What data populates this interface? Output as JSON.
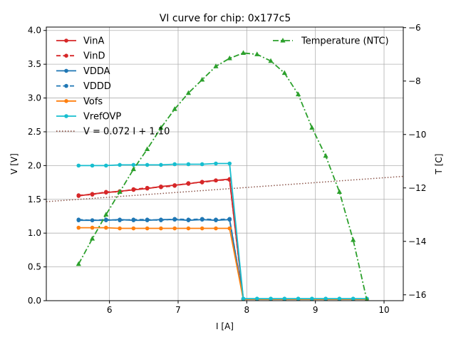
{
  "chart_data": {
    "type": "line",
    "title": "VI curve for chip: 0x177c5",
    "xlabel": "I [A]",
    "ylabel": "V [V]",
    "y2label": "T [C]",
    "xlim": [
      5.08,
      10.28
    ],
    "ylim": [
      0.0,
      4.05
    ],
    "y2lim": [
      -16.22,
      -5.98
    ],
    "xticks": [
      6,
      7,
      8,
      9,
      10
    ],
    "yticks": [
      0.0,
      0.5,
      1.0,
      1.5,
      2.0,
      2.5,
      3.0,
      3.5,
      4.0
    ],
    "ytick_labels": [
      "0.0",
      "0.5",
      "1.0",
      "1.5",
      "2.0",
      "2.5",
      "3.0",
      "3.5",
      "4.0"
    ],
    "y2ticks": [
      -16,
      -14,
      -12,
      -10,
      -8,
      -6
    ],
    "y2tick_labels": [
      "−16",
      "−14",
      "−12",
      "−10",
      "−8",
      "−6"
    ],
    "grid": true,
    "legend_left_position": "top-left",
    "legend_right_position": "top-right",
    "x": [
      5.55,
      5.75,
      5.95,
      6.15,
      6.35,
      6.55,
      6.75,
      6.95,
      7.15,
      7.35,
      7.55,
      7.75,
      7.95,
      8.15,
      8.35,
      8.55,
      8.75,
      8.95,
      9.15,
      9.35,
      9.55,
      9.75
    ],
    "series": [
      {
        "name": "VinA",
        "color": "#d62728",
        "style": "solid",
        "marker": "circle",
        "axis": "left",
        "values": [
          1.55,
          1.58,
          1.6,
          1.62,
          1.64,
          1.66,
          1.69,
          1.71,
          1.73,
          1.76,
          1.78,
          1.8,
          0.02,
          0.02,
          0.02,
          0.02,
          0.02,
          0.02,
          0.02,
          0.02,
          0.02,
          0.02
        ]
      },
      {
        "name": "VinD",
        "color": "#d62728",
        "style": "dashed",
        "marker": "circle",
        "axis": "left",
        "values": [
          1.56,
          1.57,
          1.61,
          1.61,
          1.65,
          1.67,
          1.68,
          1.7,
          1.74,
          1.75,
          1.78,
          1.79,
          0.02,
          0.02,
          0.02,
          0.02,
          0.02,
          0.02,
          0.02,
          0.02,
          0.02,
          0.02
        ]
      },
      {
        "name": "VDDA",
        "color": "#1f77b4",
        "style": "solid",
        "marker": "circle",
        "axis": "left",
        "values": [
          1.19,
          1.19,
          1.19,
          1.2,
          1.19,
          1.19,
          1.2,
          1.2,
          1.19,
          1.2,
          1.19,
          1.2,
          0.02,
          0.02,
          0.02,
          0.02,
          0.02,
          0.02,
          0.02,
          0.02,
          0.02,
          0.02
        ]
      },
      {
        "name": "VDDD",
        "color": "#1f77b4",
        "style": "dashed",
        "marker": "circle",
        "axis": "left",
        "values": [
          1.2,
          1.19,
          1.2,
          1.19,
          1.2,
          1.2,
          1.19,
          1.21,
          1.2,
          1.21,
          1.2,
          1.21,
          0.02,
          0.02,
          0.02,
          0.02,
          0.02,
          0.02,
          0.02,
          0.02,
          0.02,
          0.02
        ]
      },
      {
        "name": "Vofs",
        "color": "#ff7f0e",
        "style": "solid",
        "marker": "circle",
        "axis": "left",
        "values": [
          1.08,
          1.08,
          1.08,
          1.07,
          1.07,
          1.07,
          1.07,
          1.07,
          1.07,
          1.07,
          1.07,
          1.07,
          0.02,
          0.02,
          0.02,
          0.02,
          0.02,
          0.02,
          0.02,
          0.02,
          0.02,
          0.02
        ]
      },
      {
        "name": "VrefOVP",
        "color": "#17becf",
        "style": "solid",
        "marker": "circle",
        "axis": "left",
        "values": [
          2.0,
          2.0,
          2.0,
          2.01,
          2.01,
          2.01,
          2.01,
          2.02,
          2.02,
          2.02,
          2.03,
          2.03,
          0.03,
          0.03,
          0.03,
          0.03,
          0.03,
          0.03,
          0.03,
          0.03,
          0.03,
          0.03
        ]
      }
    ],
    "fit_line": {
      "name": "V = 0.072 I + 1.10",
      "slope": 0.072,
      "intercept": 1.1,
      "color": "#8c564b",
      "style": "dotted"
    },
    "right_series": [
      {
        "name": "Temperature (NTC)",
        "color": "#2ca02c",
        "style": "dashdot",
        "marker": "triangle",
        "axis": "right",
        "values": [
          -14.85,
          -13.9,
          -13.0,
          -12.15,
          -11.3,
          -10.55,
          -9.75,
          -9.05,
          -8.45,
          -7.95,
          -7.45,
          -7.15,
          -6.95,
          -7.0,
          -7.25,
          -7.7,
          -8.5,
          -9.75,
          -10.8,
          -12.15,
          -13.95,
          -16.2
        ]
      }
    ]
  }
}
